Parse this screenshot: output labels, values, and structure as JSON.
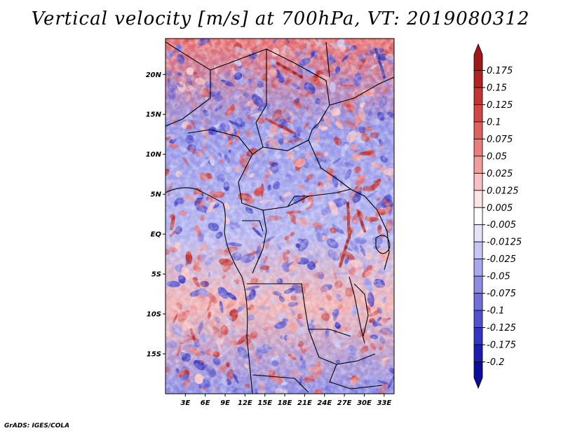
{
  "title": "Vertical velocity [m/s] at 700hPa, VT: 2019080312",
  "credit": "GrADS: IGES/COLA",
  "map": {
    "lat_labels": [
      "20N",
      "15N",
      "10N",
      "5N",
      "EQ",
      "5S",
      "10S",
      "15S"
    ],
    "lon_labels": [
      "3E",
      "6E",
      "9E",
      "12E",
      "15E",
      "18E",
      "21E",
      "24E",
      "27E",
      "30E",
      "33E"
    ],
    "lat_values": [
      20,
      15,
      10,
      5,
      0,
      -5,
      -10,
      -15
    ],
    "lon_values": [
      3,
      6,
      9,
      12,
      15,
      18,
      21,
      24,
      27,
      30,
      33
    ],
    "lon_range": [
      0,
      34.5
    ],
    "lat_range": [
      -20,
      24.5
    ]
  },
  "colorbar": {
    "levels": [
      "0.175",
      "0.15",
      "0.125",
      "0.1",
      "0.075",
      "0.05",
      "0.025",
      "0.0125",
      "0.005",
      "-0.005",
      "-0.0125",
      "-0.025",
      "-0.05",
      "-0.075",
      "-0.1",
      "-0.125",
      "-0.175",
      "-0.2"
    ],
    "colors": [
      "#a01818",
      "#b22222",
      "#c43232",
      "#d44646",
      "#e06060",
      "#ea7c7c",
      "#f29c9c",
      "#f8c0c0",
      "#fde4e4",
      "#ffffff",
      "#e4e4fa",
      "#c6c6f4",
      "#a8a8ee",
      "#8c8ce6",
      "#7070dc",
      "#5252d0",
      "#3434c2",
      "#1c1cb2",
      "#0c0c9c"
    ]
  },
  "colors": {
    "positive": "#d04040",
    "negative": "#5a5ad8",
    "neutral": "#ffffff"
  }
}
